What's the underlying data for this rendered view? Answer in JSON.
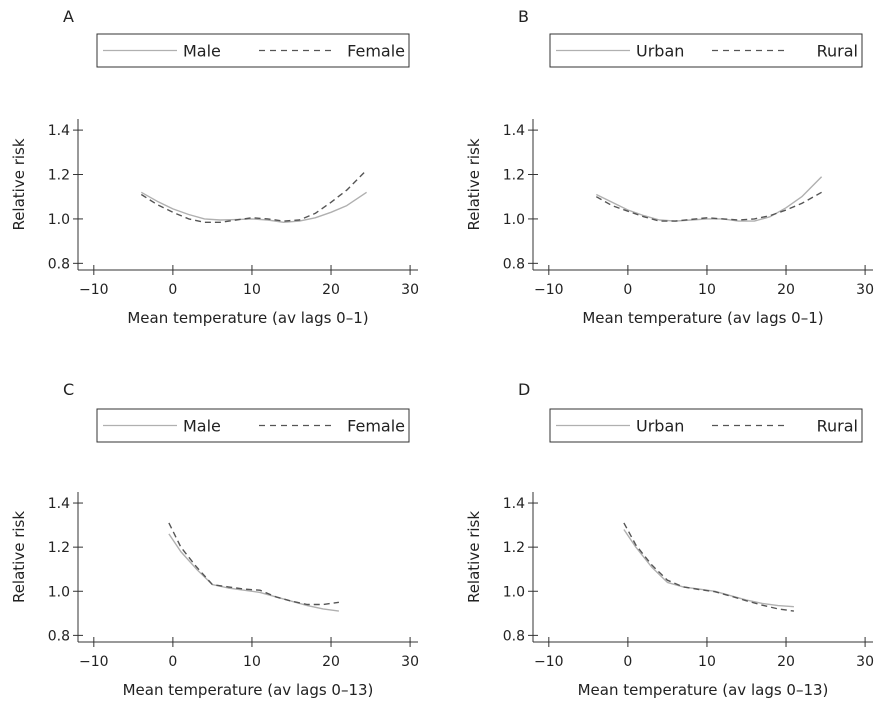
{
  "chart_data": [
    {
      "panel": "A",
      "type": "line",
      "xlabel": "Mean temperature (av lags 0–1)",
      "ylabel": "Relative risk",
      "xlim": [
        -12,
        31
      ],
      "ylim": [
        0.77,
        1.45
      ],
      "xticks": [
        -10,
        0,
        10,
        20,
        30
      ],
      "yticks": [
        0.8,
        1.0,
        1.2,
        1.4
      ],
      "ytick_labels": [
        "0.8",
        "1.0",
        "1.2",
        "1.4"
      ],
      "grid": false,
      "legend": "top",
      "series": [
        {
          "name": "Male",
          "style": "solid",
          "color": "#b0b0b0",
          "x": [
            -4,
            -2,
            0,
            2,
            4,
            6,
            8,
            10,
            12,
            14,
            16,
            18,
            20,
            22,
            24.5
          ],
          "y": [
            1.12,
            1.08,
            1.045,
            1.02,
            1.0,
            0.995,
            0.997,
            1.0,
            0.995,
            0.985,
            0.99,
            1.005,
            1.03,
            1.06,
            1.12
          ]
        },
        {
          "name": "Female",
          "style": "dashed",
          "color": "#555555",
          "x": [
            -4,
            -2,
            0,
            2,
            4,
            6,
            8,
            10,
            12,
            14,
            16,
            18,
            20,
            22,
            24.5
          ],
          "y": [
            1.11,
            1.065,
            1.03,
            1.0,
            0.985,
            0.985,
            0.995,
            1.005,
            1.0,
            0.99,
            0.995,
            1.025,
            1.075,
            1.13,
            1.22
          ]
        }
      ]
    },
    {
      "panel": "B",
      "type": "line",
      "xlabel": "Mean temperature (av lags 0–1)",
      "ylabel": "Relative risk",
      "xlim": [
        -12,
        31
      ],
      "ylim": [
        0.77,
        1.45
      ],
      "xticks": [
        -10,
        0,
        10,
        20,
        30
      ],
      "yticks": [
        0.8,
        1.0,
        1.2,
        1.4
      ],
      "ytick_labels": [
        "0.8",
        "1.0",
        "1.2",
        "1.4"
      ],
      "grid": false,
      "legend": "top",
      "series": [
        {
          "name": "Urban",
          "style": "solid",
          "color": "#b0b0b0",
          "x": [
            -4,
            -2,
            0,
            2,
            4,
            6,
            8,
            10,
            12,
            14,
            16,
            18,
            20,
            22,
            24.5
          ],
          "y": [
            1.11,
            1.075,
            1.04,
            1.015,
            0.995,
            0.99,
            0.995,
            1.0,
            1.0,
            0.99,
            0.99,
            1.01,
            1.05,
            1.1,
            1.19
          ]
        },
        {
          "name": "Rural",
          "style": "dashed",
          "color": "#555555",
          "x": [
            -4,
            -2,
            0,
            2,
            4,
            6,
            8,
            10,
            12,
            14,
            16,
            18,
            20,
            22,
            24.5
          ],
          "y": [
            1.1,
            1.06,
            1.035,
            1.01,
            0.99,
            0.99,
            0.998,
            1.005,
            1.0,
            0.995,
            1.0,
            1.015,
            1.04,
            1.07,
            1.12
          ]
        }
      ]
    },
    {
      "panel": "C",
      "type": "line",
      "xlabel": "Mean temperature (av lags 0–13)",
      "ylabel": "Relative risk",
      "xlim": [
        -12,
        31
      ],
      "ylim": [
        0.77,
        1.45
      ],
      "xticks": [
        -10,
        0,
        10,
        20,
        30
      ],
      "yticks": [
        0.8,
        1.0,
        1.2,
        1.4
      ],
      "ytick_labels": [
        "0.8",
        "1.0",
        "1.2",
        "1.4"
      ],
      "grid": false,
      "legend": "top",
      "series": [
        {
          "name": "Male",
          "style": "solid",
          "color": "#b0b0b0",
          "x": [
            -0.5,
            1,
            3,
            5,
            7,
            9,
            11,
            13,
            15,
            17,
            19,
            21
          ],
          "y": [
            1.26,
            1.18,
            1.1,
            1.03,
            1.015,
            1.005,
            0.995,
            0.975,
            0.955,
            0.935,
            0.92,
            0.91
          ]
        },
        {
          "name": "Female",
          "style": "dashed",
          "color": "#555555",
          "x": [
            -0.5,
            1,
            3,
            5,
            7,
            9,
            11,
            13,
            15,
            17,
            19,
            21
          ],
          "y": [
            1.31,
            1.2,
            1.11,
            1.03,
            1.02,
            1.01,
            1.005,
            0.975,
            0.955,
            0.94,
            0.94,
            0.95
          ]
        }
      ]
    },
    {
      "panel": "D",
      "type": "line",
      "xlabel": "Mean temperature (av lags 0–13)",
      "ylabel": "Relative risk",
      "xlim": [
        -12,
        31
      ],
      "ylim": [
        0.77,
        1.45
      ],
      "xticks": [
        -10,
        0,
        10,
        20,
        30
      ],
      "yticks": [
        0.8,
        1.0,
        1.2,
        1.4
      ],
      "ytick_labels": [
        "0.8",
        "1.0",
        "1.2",
        "1.4"
      ],
      "grid": false,
      "legend": "top",
      "series": [
        {
          "name": "Urban",
          "style": "solid",
          "color": "#b0b0b0",
          "x": [
            -0.5,
            1,
            3,
            5,
            7,
            9,
            11,
            13,
            15,
            17,
            19,
            21
          ],
          "y": [
            1.28,
            1.2,
            1.11,
            1.04,
            1.02,
            1.01,
            1.0,
            0.98,
            0.96,
            0.945,
            0.935,
            0.93
          ]
        },
        {
          "name": "Rural",
          "style": "dashed",
          "color": "#555555",
          "x": [
            -0.5,
            1,
            3,
            5,
            7,
            9,
            11,
            13,
            15,
            17,
            19,
            21
          ],
          "y": [
            1.31,
            1.21,
            1.12,
            1.05,
            1.02,
            1.008,
            0.998,
            0.978,
            0.957,
            0.937,
            0.92,
            0.91
          ]
        }
      ]
    }
  ]
}
